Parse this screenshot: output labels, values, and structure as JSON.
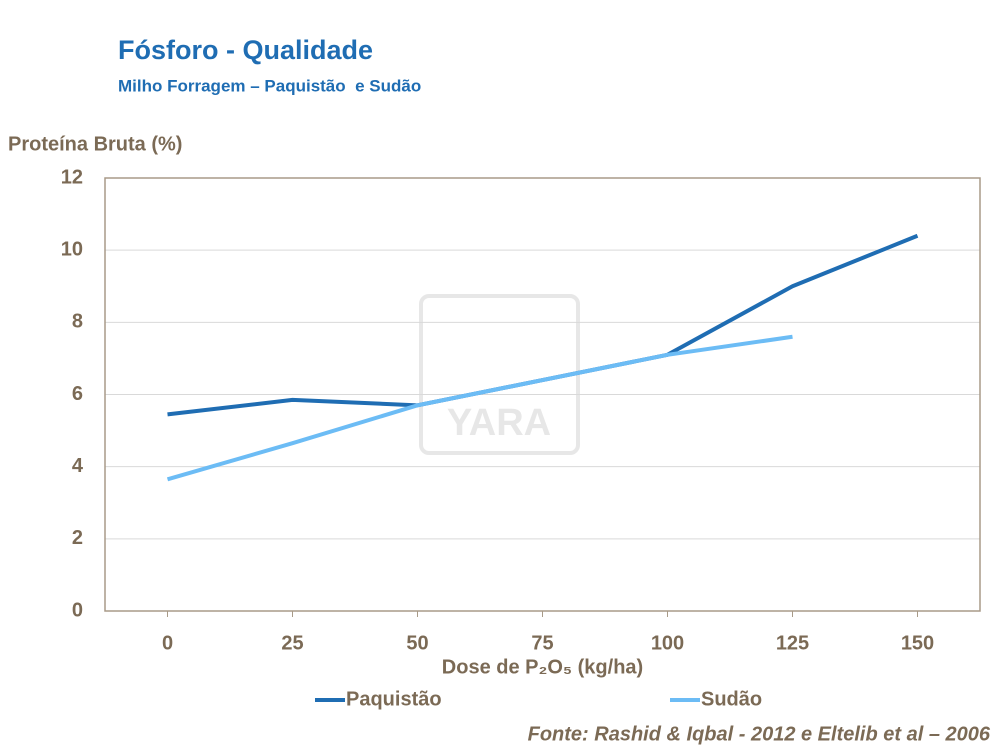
{
  "chart_data": {
    "type": "line",
    "title": "Fósforo - Qualidade",
    "subtitle": "Milho Forragem – Paquistão  e Sudão",
    "y_label": "Proteína Bruta (%)",
    "x_label": "Dose de P₂O₅ (kg/ha)",
    "watermark": "YARA",
    "source": "Fonte: Rashid & Iqbal - 2012 e Eltelib et al – 2006",
    "x": [
      0,
      25,
      50,
      75,
      100,
      125,
      150
    ],
    "xlim": [
      -12.5,
      162.5
    ],
    "xticks": [
      0,
      25,
      50,
      75,
      100,
      125,
      150
    ],
    "ylim": [
      0,
      12
    ],
    "yticks": [
      0,
      2,
      4,
      6,
      8,
      10,
      12
    ],
    "grid": true,
    "legend": "bottom",
    "series": [
      {
        "name": "Paquistão",
        "color": "#1f6db3",
        "values": [
          5.45,
          5.85,
          5.7,
          6.4,
          7.1,
          9.0,
          10.4
        ]
      },
      {
        "name": "Sudão",
        "color": "#6cbcf5",
        "values": [
          3.65,
          4.65,
          5.7,
          6.4,
          7.1,
          7.6,
          null
        ]
      }
    ]
  }
}
